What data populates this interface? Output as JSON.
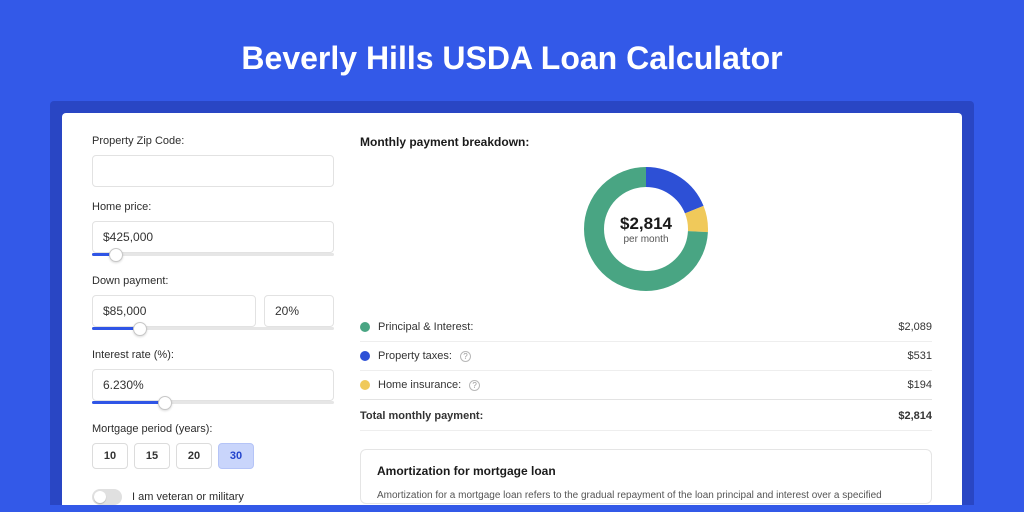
{
  "page": {
    "title": "Beverly Hills USDA Loan Calculator",
    "background_color": "#3359e8",
    "inner_bg": "#2946c4"
  },
  "form": {
    "zip": {
      "label": "Property Zip Code:",
      "value": ""
    },
    "home_price": {
      "label": "Home price:",
      "value": "$425,000",
      "slider_pct": 10
    },
    "down_payment": {
      "label": "Down payment:",
      "value": "$85,000",
      "pct": "20%",
      "slider_pct": 20
    },
    "interest": {
      "label": "Interest rate (%):",
      "value": "6.230%",
      "slider_pct": 30
    },
    "term": {
      "label": "Mortgage period (years):",
      "options": [
        "10",
        "15",
        "20",
        "30"
      ],
      "selected": "30"
    },
    "veteran": {
      "label": "I am veteran or military",
      "on": false
    }
  },
  "breakdown": {
    "title": "Monthly payment breakdown:",
    "total_amount": "$2,814",
    "total_label": "per month",
    "items": [
      {
        "name": "Principal & Interest:",
        "value": "$2,089",
        "color": "#49a583",
        "pct": 74.2
      },
      {
        "name": "Property taxes:",
        "value": "$531",
        "color": "#2d50d6",
        "pct": 18.9,
        "info": true
      },
      {
        "name": "Home insurance:",
        "value": "$194",
        "color": "#f0c95a",
        "pct": 6.9,
        "info": true
      }
    ],
    "total_row": {
      "label": "Total monthly payment:",
      "value": "$2,814"
    }
  },
  "donut": {
    "size": 128,
    "stroke_width": 20,
    "bg": "#ffffff"
  },
  "amortization": {
    "title": "Amortization for mortgage loan",
    "text": "Amortization for a mortgage loan refers to the gradual repayment of the loan principal and interest over a specified"
  }
}
